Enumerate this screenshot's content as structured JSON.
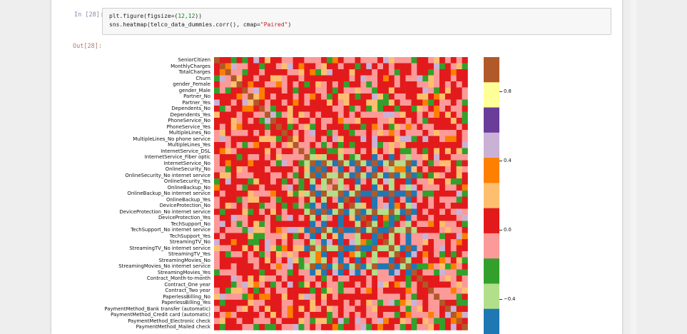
{
  "cell_in": {
    "prompt": "In [28]:",
    "code": {
      "line1_fn": "plt.figure(figsize=(",
      "line1_num": "12,12",
      "line1_end": "))",
      "line2_fn": "sns.heatmap(telco_data_dummies.corr(), cmap=",
      "line2_str": "\"Paired\"",
      "line2_end": ")"
    }
  },
  "cell_out": {
    "prompt": "Out[28]:"
  },
  "chart_data": {
    "type": "heatmap",
    "cmap": "Paired",
    "palette": [
      "#1f78b4",
      "#b2df8a",
      "#33a02c",
      "#fb9a99",
      "#e31a1c",
      "#fdbf6f",
      "#ff7f00",
      "#cab2d6",
      "#6a3d9a",
      "#ffff99",
      "#b15928"
    ],
    "vmin": -0.6,
    "vmax": 1.0,
    "row_labels": [
      "SeniorCitizen",
      "MonthlyCharges",
      "TotalCharges",
      "Churn",
      "gender_Female",
      "gender_Male",
      "Partner_No",
      "Partner_Yes",
      "Dependents_No",
      "Dependents_Yes",
      "PhoneService_No",
      "PhoneService_Yes",
      "MultipleLines_No",
      "MultipleLines_No phone service",
      "MultipleLines_Yes",
      "InternetService_DSL",
      "InternetService_Fiber optic",
      "InternetService_No",
      "OnlineSecurity_No",
      "OnlineSecurity_No internet service",
      "OnlineSecurity_Yes",
      "OnlineBackup_No",
      "OnlineBackup_No internet service",
      "OnlineBackup_Yes",
      "DeviceProtection_No",
      "DeviceProtection_No internet service",
      "DeviceProtection_Yes",
      "TechSupport_No",
      "TechSupport_No internet service",
      "TechSupport_Yes",
      "StreamingTV_No",
      "StreamingTV_No internet service",
      "StreamingTV_Yes",
      "StreamingMovies_No",
      "StreamingMovies_No internet service",
      "StreamingMovies_Yes",
      "Contract_Month-to-month",
      "Contract_One year",
      "Contract_Two year",
      "PaperlessBilling_No",
      "PaperlessBilling_Yes",
      "PaymentMethod_Bank transfer (automatic)",
      "PaymentMethod_Credit card (automatic)",
      "PaymentMethod_Electronic check",
      "PaymentMethod_Mailed check"
    ],
    "colorbar_ticks": [
      {
        "value": 0.8,
        "label": "0.8"
      },
      {
        "value": 0.4,
        "label": "0.4"
      },
      {
        "value": 0.0,
        "label": "0.0"
      },
      {
        "value": -0.4,
        "label": "−0.4"
      }
    ],
    "diagonal_value": 1.0,
    "strong_groups": {
      "internet_no_block_rows": [
        17,
        19,
        22,
        25,
        28,
        31,
        34
      ],
      "internet_no_block_value": 1.0,
      "no_vs_internet_value": -0.5
    }
  }
}
